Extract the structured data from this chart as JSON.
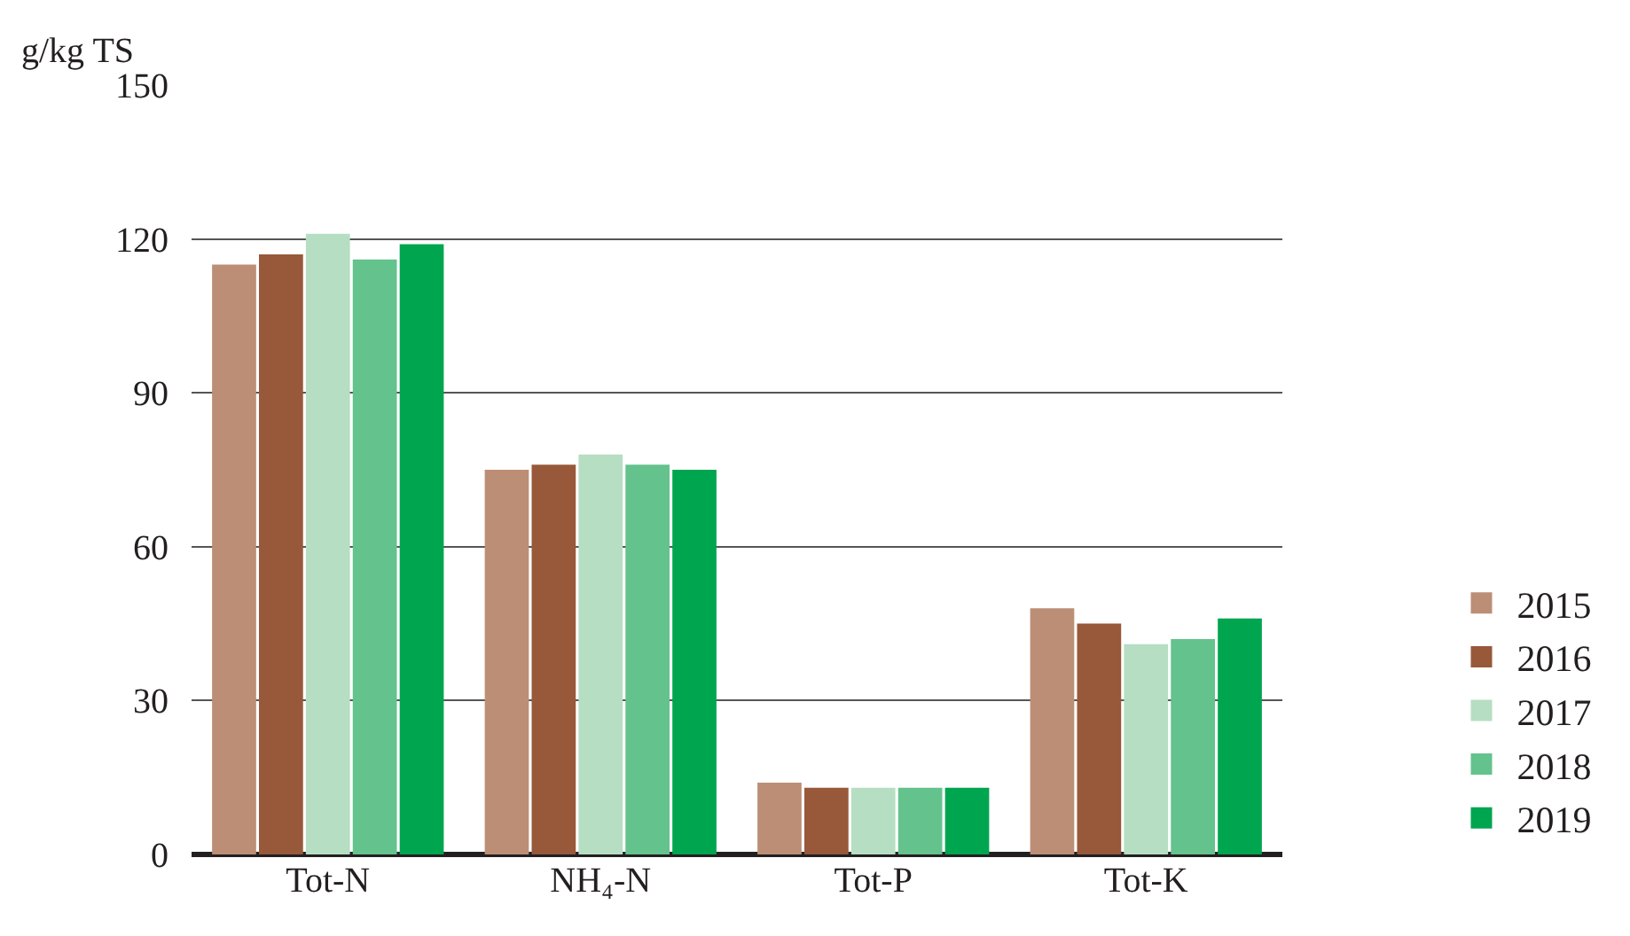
{
  "chart_data": {
    "type": "bar",
    "ylabel": "g/kg TS",
    "categories": [
      "Tot-N",
      "NH₄-N",
      "Tot-P",
      "Tot-K"
    ],
    "series": [
      {
        "name": "2015",
        "color": "#bc8e76",
        "values": [
          115,
          75,
          14,
          48
        ]
      },
      {
        "name": "2016",
        "color": "#98583a",
        "values": [
          117,
          76,
          13,
          45
        ]
      },
      {
        "name": "2017",
        "color": "#b6dec2",
        "values": [
          121,
          78,
          13,
          41
        ]
      },
      {
        "name": "2018",
        "color": "#64c28d",
        "values": [
          116,
          76,
          13,
          42
        ]
      },
      {
        "name": "2019",
        "color": "#00a54f",
        "values": [
          119,
          75,
          13,
          46
        ]
      }
    ],
    "ylim": [
      0,
      150
    ],
    "yticks": [
      0,
      30,
      60,
      90,
      120,
      150
    ],
    "grid": "y",
    "legend": "right"
  }
}
